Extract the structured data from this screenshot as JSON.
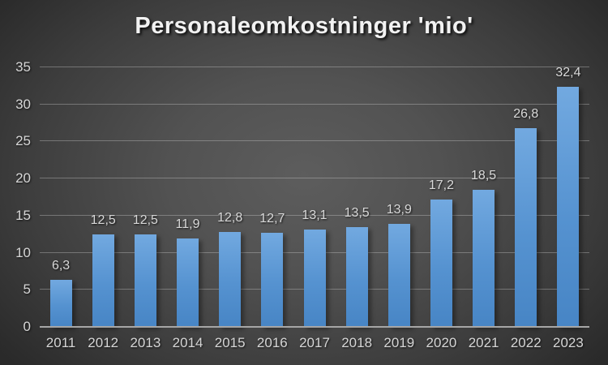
{
  "chart_data": {
    "type": "bar",
    "title": "Personaleomkostninger 'mio'",
    "categories": [
      "2011",
      "2012",
      "2013",
      "2014",
      "2015",
      "2016",
      "2017",
      "2018",
      "2019",
      "2020",
      "2021",
      "2022",
      "2023"
    ],
    "values": [
      6.3,
      12.5,
      12.5,
      11.9,
      12.8,
      12.7,
      13.1,
      13.5,
      13.9,
      17.2,
      18.5,
      26.8,
      32.4
    ],
    "value_labels": [
      "6,3",
      "12,5",
      "12,5",
      "11,9",
      "12,8",
      "12,7",
      "13,1",
      "13,5",
      "13,9",
      "17,2",
      "18,5",
      "26,8",
      "32,4"
    ],
    "xlabel": "",
    "ylabel": "",
    "ylim": [
      0,
      35
    ],
    "yticks": [
      0,
      5,
      10,
      15,
      20,
      25,
      30,
      35
    ],
    "grid": true,
    "legend": false,
    "colors": {
      "bar_top": "#72a9e0",
      "bar_bottom": "#4785c5",
      "background_center": "#5d5d5d",
      "background_edge": "#242424",
      "gridline": "#cdcdcd",
      "axis_line": "#a6a6a6",
      "tick_text": "#d6d6d6",
      "value_text": "#d9d9d9",
      "title_text": "#f2f2f2"
    }
  }
}
